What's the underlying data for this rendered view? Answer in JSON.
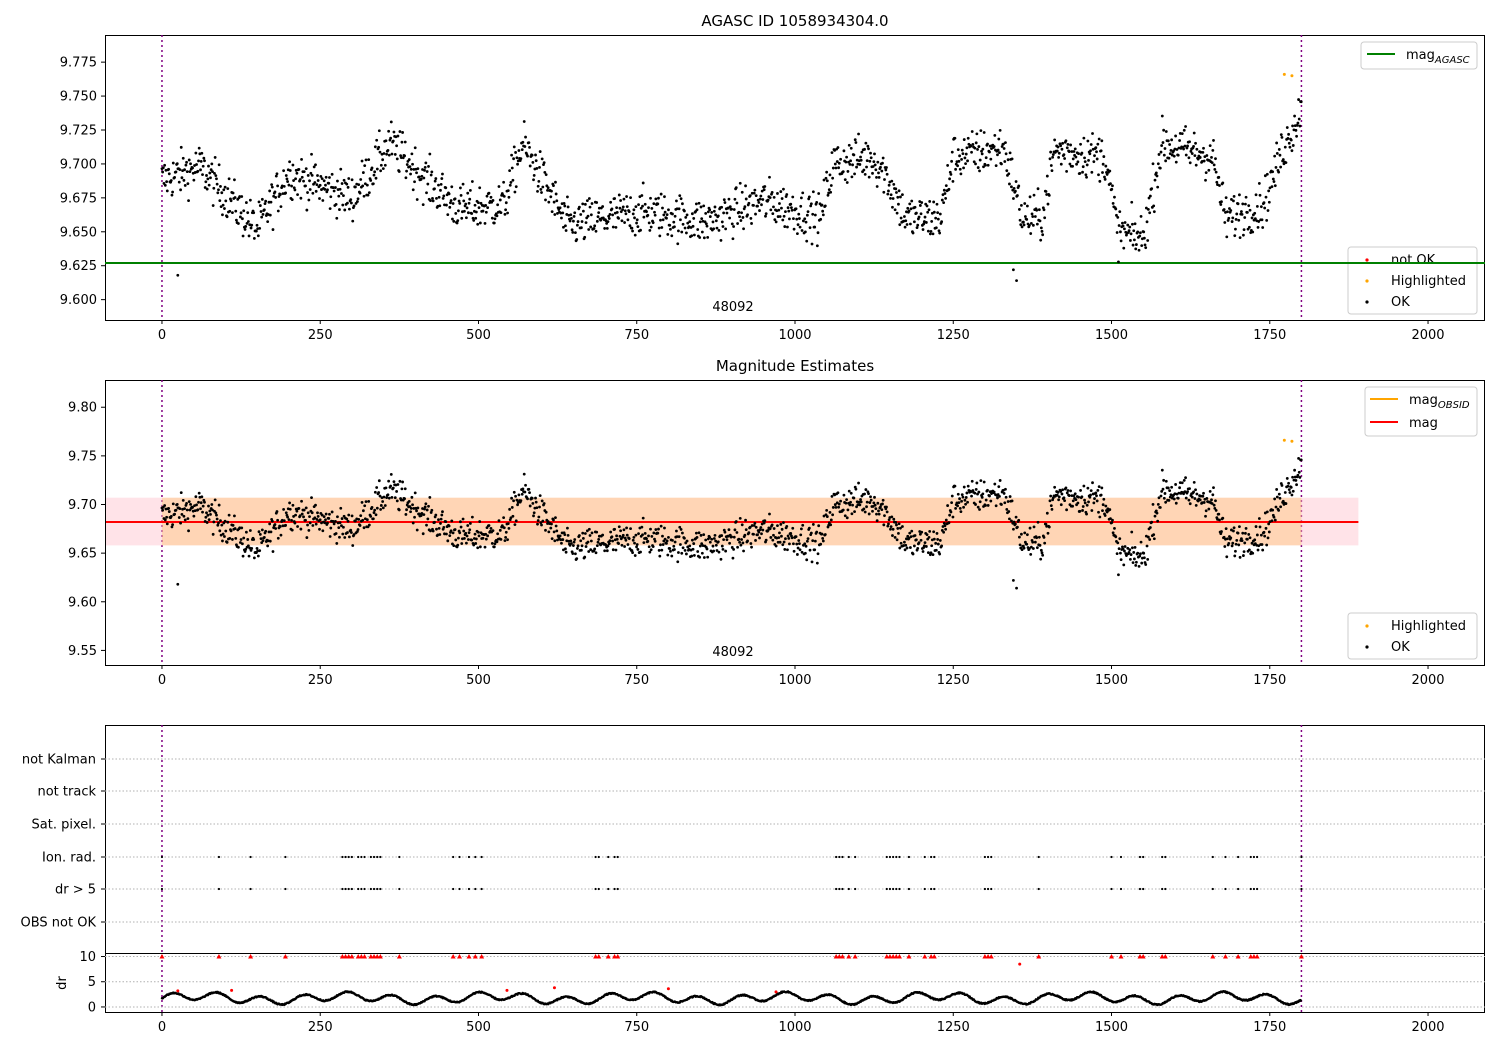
{
  "figure": {
    "top_title": "AGASC ID 1058934304.0",
    "mid_title": "Magnitude Estimates",
    "obsid_label": "48092"
  },
  "x_axis": {
    "ticks": [
      0,
      250,
      500,
      750,
      1000,
      1250,
      1500,
      1750,
      2000
    ],
    "range": [
      -90,
      2090
    ],
    "vlines": [
      0,
      1800
    ]
  },
  "chart_data": [
    {
      "type": "scatter",
      "title": "AGASC ID 1058934304.0",
      "ylim": [
        9.585,
        9.795
      ],
      "yticks": [
        "9.600",
        "9.625",
        "9.650",
        "9.675",
        "9.700",
        "9.725",
        "9.750",
        "9.775"
      ],
      "yticks_values": [
        9.6,
        9.625,
        9.65,
        9.675,
        9.7,
        9.725,
        9.75,
        9.775
      ],
      "hline": 9.627,
      "hline_label": "mag",
      "hline_label_sub": "AGASC",
      "scatter_legend": [
        "not OK",
        "Highlighted",
        "OK"
      ],
      "annotation": "48092",
      "highlighted": [
        [
          1773,
          9.766
        ],
        [
          1785,
          9.765
        ]
      ],
      "outliers": [
        [
          25,
          9.618
        ],
        [
          1350,
          9.614
        ],
        [
          1345,
          9.622
        ]
      ],
      "segments": [
        [
          0,
          9.688
        ],
        [
          60,
          9.698
        ],
        [
          95,
          9.68
        ],
        [
          150,
          9.652
        ],
        [
          200,
          9.693
        ],
        [
          300,
          9.675
        ],
        [
          360,
          9.715
        ],
        [
          420,
          9.687
        ],
        [
          470,
          9.667
        ],
        [
          540,
          9.67
        ],
        [
          570,
          9.715
        ],
        [
          640,
          9.655
        ],
        [
          760,
          9.665
        ],
        [
          860,
          9.657
        ],
        [
          950,
          9.673
        ],
        [
          1040,
          9.66
        ],
        [
          1060,
          9.7
        ],
        [
          1120,
          9.705
        ],
        [
          1140,
          9.695
        ],
        [
          1175,
          9.66
        ],
        [
          1230,
          9.66
        ],
        [
          1250,
          9.705
        ],
        [
          1330,
          9.712
        ],
        [
          1360,
          9.66
        ],
        [
          1390,
          9.66
        ],
        [
          1410,
          9.71
        ],
        [
          1490,
          9.705
        ],
        [
          1510,
          9.65
        ],
        [
          1550,
          9.645
        ],
        [
          1580,
          9.715
        ],
        [
          1660,
          9.705
        ],
        [
          1680,
          9.66
        ],
        [
          1740,
          9.67
        ],
        [
          1770,
          9.71
        ],
        [
          1800,
          9.74
        ]
      ]
    },
    {
      "type": "scatter",
      "title": "Magnitude Estimates",
      "ylim": [
        9.535,
        9.828
      ],
      "yticks": [
        "9.55",
        "9.60",
        "9.65",
        "9.70",
        "9.75",
        "9.80"
      ],
      "yticks_values": [
        9.55,
        9.6,
        9.65,
        9.7,
        9.75,
        9.8
      ],
      "mag_line": 9.682,
      "mag_band": [
        9.658,
        9.707
      ],
      "band_x_end": 1890,
      "line_legend": [
        {
          "label": "mag",
          "sub": "OBSID",
          "color": "#ffa500"
        },
        {
          "label": "mag",
          "sub": "",
          "color": "#ff0000"
        }
      ],
      "scatter_legend": [
        "Highlighted",
        "OK"
      ],
      "annotation": "48092"
    },
    {
      "type": "scatter",
      "flag_labels": [
        "not Kalman",
        "not track",
        "Sat. pixel.",
        "Ion. rad.",
        "dr > 5",
        "OBS not OK"
      ],
      "flag_times": [
        0,
        90,
        140,
        195,
        285,
        290,
        295,
        300,
        310,
        315,
        320,
        330,
        335,
        340,
        345,
        375,
        460,
        470,
        485,
        495,
        505,
        685,
        690,
        705,
        715,
        720,
        1065,
        1070,
        1075,
        1085,
        1095,
        1145,
        1150,
        1155,
        1160,
        1165,
        1180,
        1205,
        1215,
        1220,
        1300,
        1305,
        1310,
        1385,
        1500,
        1515,
        1545,
        1550,
        1580,
        1585,
        1660,
        1680,
        1700,
        1720,
        1725,
        1730,
        1800
      ],
      "dr_ylabel": "dr",
      "dr_yticks": [
        0,
        5,
        10
      ],
      "dr_ylim": [
        -1,
        10.5
      ],
      "dr_red_extra": [
        [
          25,
          3.2
        ],
        [
          110,
          3.3
        ],
        [
          545,
          3.3
        ],
        [
          620,
          3.8
        ],
        [
          800,
          3.6
        ],
        [
          970,
          3.0
        ],
        [
          1355,
          8.5
        ]
      ]
    }
  ]
}
